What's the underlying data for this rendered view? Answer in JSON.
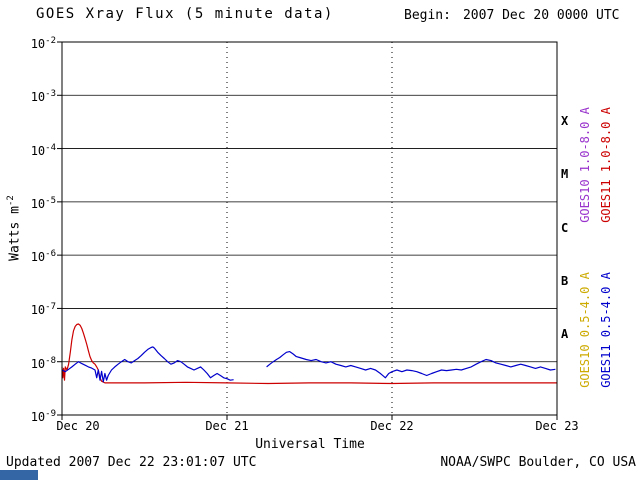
{
  "header": {
    "begin_label": "Begin:",
    "begin_value": "2007 Dec 20 0000 UTC"
  },
  "footer": {
    "updated": "Updated 2007 Dec 22 23:01:07 UTC",
    "source": "NOAA/SWPC Boulder, CO USA"
  },
  "chart_data": {
    "type": "line",
    "title": "GOES Xray Flux (5 minute data)",
    "xlabel": "Universal Time",
    "ylabel_base": "Watts m",
    "ylabel_exp": "-2",
    "y_tick_base": "10",
    "y_tick_exponents": [
      -2,
      -3,
      -4,
      -5,
      -6,
      -7,
      -8,
      -9
    ],
    "y_log_range": [
      -9,
      -2
    ],
    "x_ticks": [
      "Dec 20",
      "Dec 21",
      "Dec 22",
      "Dec 23"
    ],
    "x_tick_days": [
      0,
      1,
      2,
      3
    ],
    "x_range_days": [
      0,
      3
    ],
    "grid": {
      "horizontal": "solid-per-decade",
      "vertical": "dotted-per-day"
    },
    "flare_classes": [
      {
        "label": "X",
        "center_exp": -3.5
      },
      {
        "label": "M",
        "center_exp": -4.5
      },
      {
        "label": "C",
        "center_exp": -5.5
      },
      {
        "label": "B",
        "center_exp": -6.5
      },
      {
        "label": "A",
        "center_exp": -7.5
      }
    ],
    "legend": [
      {
        "label": "GOES10 1.0-8.0 A",
        "color": "#9933cc"
      },
      {
        "label": "GOES11 1.0-8.0 A",
        "color": "#cc0000"
      },
      {
        "label": "GOES10 0.5-4.0 A",
        "color": "#ccaa00"
      },
      {
        "label": "GOES11 0.5-4.0 A",
        "color": "#0000cc"
      }
    ],
    "series": [
      {
        "name": "GOES11 1.0-8.0 A",
        "color": "#cc0000",
        "points": [
          [
            0.0,
            8e-09
          ],
          [
            0.005,
            5e-09
          ],
          [
            0.01,
            7.5e-09
          ],
          [
            0.015,
            4.5e-09
          ],
          [
            0.02,
            8e-09
          ],
          [
            0.03,
            7e-09
          ],
          [
            0.04,
            9e-09
          ],
          [
            0.05,
            1.5e-08
          ],
          [
            0.06,
            2.6e-08
          ],
          [
            0.07,
            3.8e-08
          ],
          [
            0.08,
            4.6e-08
          ],
          [
            0.09,
            5e-08
          ],
          [
            0.1,
            5.1e-08
          ],
          [
            0.11,
            4.8e-08
          ],
          [
            0.12,
            4.2e-08
          ],
          [
            0.13,
            3.4e-08
          ],
          [
            0.14,
            2.7e-08
          ],
          [
            0.15,
            2.1e-08
          ],
          [
            0.16,
            1.6e-08
          ],
          [
            0.17,
            1.25e-08
          ],
          [
            0.18,
            1.05e-08
          ],
          [
            0.19,
            9.5e-09
          ],
          [
            0.2,
            9e-09
          ],
          [
            0.21,
            8e-09
          ],
          [
            0.22,
            7e-09
          ],
          [
            0.23,
            5e-09
          ],
          [
            0.24,
            4.3e-09
          ],
          [
            0.26,
            4e-09
          ],
          [
            0.5,
            4e-09
          ],
          [
            0.75,
            4.1e-09
          ],
          [
            1.0,
            4e-09
          ],
          [
            1.25,
            3.9e-09
          ],
          [
            1.5,
            4e-09
          ],
          [
            1.75,
            4e-09
          ],
          [
            2.0,
            3.9e-09
          ],
          [
            2.25,
            4e-09
          ],
          [
            2.5,
            4e-09
          ],
          [
            2.75,
            4e-09
          ],
          [
            3.0,
            4e-09
          ]
        ]
      },
      {
        "name": "GOES11 0.5-4.0 A",
        "color": "#0000cc",
        "points": [
          [
            0.0,
            7e-09
          ],
          [
            0.02,
            6.5e-09
          ],
          [
            0.04,
            7.2e-09
          ],
          [
            0.06,
            8e-09
          ],
          [
            0.08,
            9e-09
          ],
          [
            0.1,
            1e-08
          ],
          [
            0.12,
            9.2e-09
          ],
          [
            0.14,
            8.6e-09
          ],
          [
            0.16,
            8e-09
          ],
          [
            0.18,
            7.6e-09
          ],
          [
            0.2,
            7e-09
          ],
          [
            0.21,
            5e-09
          ],
          [
            0.22,
            7e-09
          ],
          [
            0.23,
            4.5e-09
          ],
          [
            0.24,
            6.6e-09
          ],
          [
            0.25,
            4.2e-09
          ],
          [
            0.26,
            6e-09
          ],
          [
            0.27,
            4.5e-09
          ],
          [
            0.28,
            5.5e-09
          ],
          [
            0.3,
            7e-09
          ],
          [
            0.32,
            8e-09
          ],
          [
            0.34,
            9e-09
          ],
          [
            0.36,
            1e-08
          ],
          [
            0.38,
            1.1e-08
          ],
          [
            0.4,
            1e-08
          ],
          [
            0.42,
            9.5e-09
          ],
          [
            0.44,
            1.05e-08
          ],
          [
            0.46,
            1.15e-08
          ],
          [
            0.48,
            1.3e-08
          ],
          [
            0.5,
            1.5e-08
          ],
          [
            0.52,
            1.7e-08
          ],
          [
            0.54,
            1.85e-08
          ],
          [
            0.55,
            1.9e-08
          ],
          [
            0.56,
            1.8e-08
          ],
          [
            0.58,
            1.5e-08
          ],
          [
            0.6,
            1.3e-08
          ],
          [
            0.62,
            1.15e-08
          ],
          [
            0.64,
            1e-08
          ],
          [
            0.66,
            9e-09
          ],
          [
            0.68,
            9.5e-09
          ],
          [
            0.7,
            1.05e-08
          ],
          [
            0.72,
            1e-08
          ],
          [
            0.74,
            9e-09
          ],
          [
            0.76,
            8e-09
          ],
          [
            0.78,
            7.5e-09
          ],
          [
            0.8,
            7e-09
          ],
          [
            0.82,
            7.5e-09
          ],
          [
            0.84,
            8e-09
          ],
          [
            0.86,
            7e-09
          ],
          [
            0.88,
            6e-09
          ],
          [
            0.9,
            5e-09
          ],
          [
            0.92,
            5.5e-09
          ],
          [
            0.94,
            6e-09
          ],
          [
            0.96,
            5.5e-09
          ],
          [
            0.98,
            5e-09
          ],
          [
            1.0,
            4.8e-09
          ],
          [
            1.02,
            4.5e-09
          ],
          [
            1.04,
            4.6e-09
          ],
          [
            1.06,
            null
          ],
          [
            1.24,
            8e-09
          ],
          [
            1.26,
            9e-09
          ],
          [
            1.28,
            1e-08
          ],
          [
            1.3,
            1.1e-08
          ],
          [
            1.32,
            1.2e-08
          ],
          [
            1.34,
            1.35e-08
          ],
          [
            1.36,
            1.5e-08
          ],
          [
            1.38,
            1.55e-08
          ],
          [
            1.4,
            1.4e-08
          ],
          [
            1.42,
            1.25e-08
          ],
          [
            1.44,
            1.2e-08
          ],
          [
            1.46,
            1.15e-08
          ],
          [
            1.48,
            1.1e-08
          ],
          [
            1.51,
            1.05e-08
          ],
          [
            1.54,
            1.1e-08
          ],
          [
            1.57,
            1e-08
          ],
          [
            1.6,
            9.5e-09
          ],
          [
            1.63,
            1e-08
          ],
          [
            1.66,
            9e-09
          ],
          [
            1.69,
            8.5e-09
          ],
          [
            1.72,
            8e-09
          ],
          [
            1.75,
            8.5e-09
          ],
          [
            1.78,
            8e-09
          ],
          [
            1.81,
            7.5e-09
          ],
          [
            1.84,
            7e-09
          ],
          [
            1.87,
            7.5e-09
          ],
          [
            1.9,
            7e-09
          ],
          [
            1.93,
            6e-09
          ],
          [
            1.96,
            5e-09
          ],
          [
            1.98,
            6e-09
          ],
          [
            2.0,
            6.5e-09
          ],
          [
            2.03,
            7e-09
          ],
          [
            2.06,
            6.5e-09
          ],
          [
            2.09,
            7e-09
          ],
          [
            2.12,
            6.8e-09
          ],
          [
            2.15,
            6.5e-09
          ],
          [
            2.18,
            6e-09
          ],
          [
            2.21,
            5.5e-09
          ],
          [
            2.24,
            6e-09
          ],
          [
            2.27,
            6.5e-09
          ],
          [
            2.3,
            7e-09
          ],
          [
            2.33,
            6.8e-09
          ],
          [
            2.36,
            7e-09
          ],
          [
            2.39,
            7.2e-09
          ],
          [
            2.42,
            7e-09
          ],
          [
            2.45,
            7.5e-09
          ],
          [
            2.48,
            8e-09
          ],
          [
            2.51,
            9e-09
          ],
          [
            2.54,
            1e-08
          ],
          [
            2.57,
            1.1e-08
          ],
          [
            2.6,
            1.05e-08
          ],
          [
            2.63,
            9.5e-09
          ],
          [
            2.66,
            9e-09
          ],
          [
            2.69,
            8.5e-09
          ],
          [
            2.72,
            8e-09
          ],
          [
            2.75,
            8.5e-09
          ],
          [
            2.78,
            9e-09
          ],
          [
            2.81,
            8.5e-09
          ],
          [
            2.84,
            8e-09
          ],
          [
            2.87,
            7.5e-09
          ],
          [
            2.9,
            8e-09
          ],
          [
            2.93,
            7.5e-09
          ],
          [
            2.96,
            7e-09
          ],
          [
            2.99,
            7.2e-09
          ]
        ]
      }
    ]
  }
}
